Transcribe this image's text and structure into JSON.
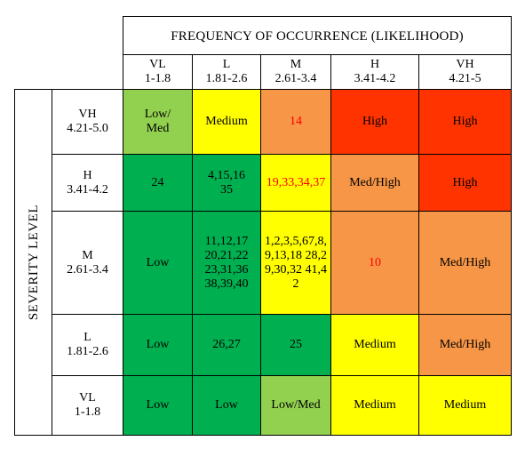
{
  "header": {
    "title": "FREQUENCY OF OCCURRENCE (LIKELIHOOD)",
    "columns": [
      {
        "code": "VL",
        "range": "1-1.8"
      },
      {
        "code": "L",
        "range": "1.81-2.6"
      },
      {
        "code": "M",
        "range": "2.61-3.4"
      },
      {
        "code": "H",
        "range": "3.41-4.2"
      },
      {
        "code": "VH",
        "range": "4.21-5"
      }
    ]
  },
  "severity_label": "SEVERITY LEVEL",
  "rows": [
    {
      "code": "VH",
      "range": "4.21-5.0",
      "cells": [
        "Low/\nMed",
        "Medium",
        "14",
        "High",
        "High"
      ]
    },
    {
      "code": "H",
      "range": "3.41-4.2",
      "cells": [
        "24",
        "4,15,16\n35",
        "19,33,34,37",
        "Med/High",
        "High"
      ]
    },
    {
      "code": "M",
      "range": "2.61-3.4",
      "cells": [
        "Low",
        "11,12,17\n20,21,22\n23,31,36\n38,39,40",
        "1,2,3,5,67,8,9,13,18 28,29,30,32 41,42",
        "10",
        "Med/High"
      ]
    },
    {
      "code": "L",
      "range": "1.81-2.6",
      "cells": [
        "Low",
        "26,27",
        "25",
        "Medium",
        "Med/High"
      ]
    },
    {
      "code": "VL",
      "range": "1-1.8",
      "cells": [
        "Low",
        "Low",
        "Low/Med",
        "Medium",
        "Medium"
      ]
    }
  ],
  "colors": {
    "green": "#00b050",
    "light_green": "#92d050",
    "yellow": "#ffff00",
    "orange": "#f79646",
    "red": "#ff3300",
    "red_text": "#ff0000"
  }
}
